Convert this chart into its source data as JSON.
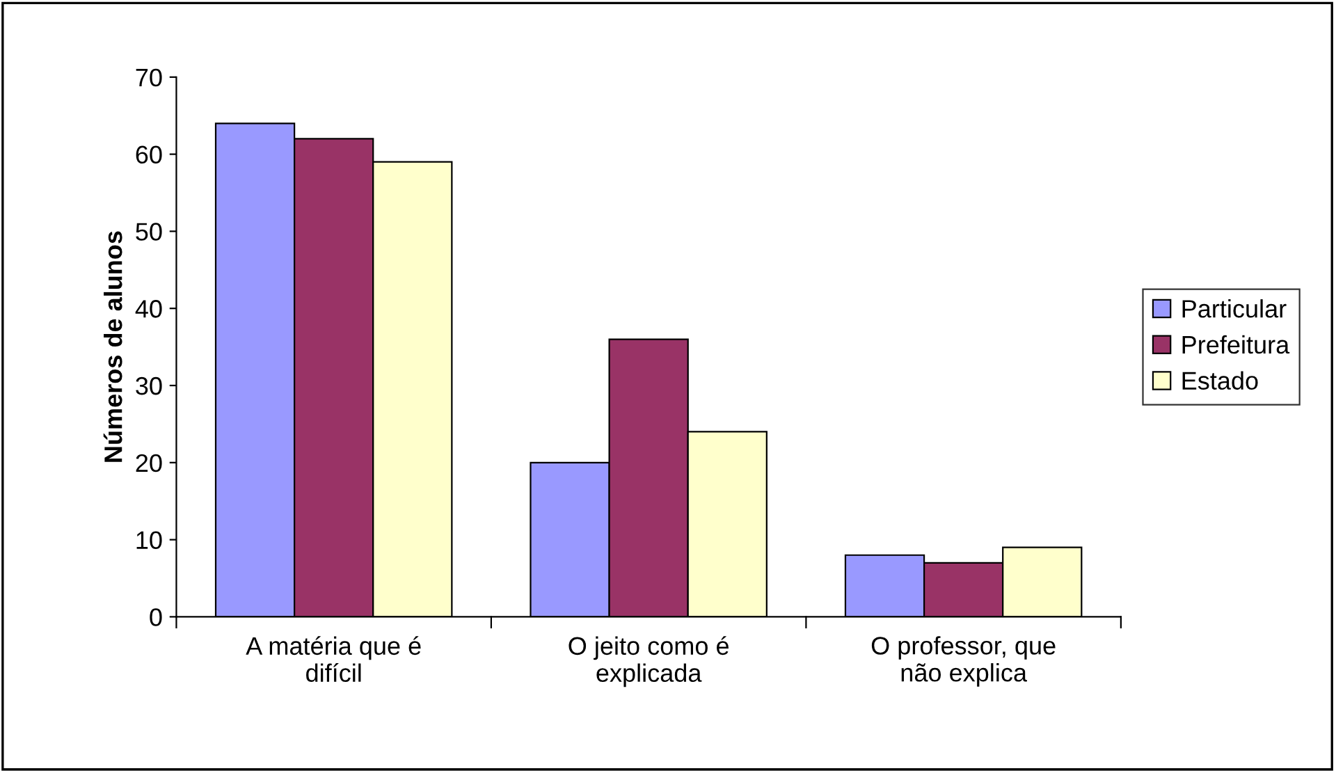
{
  "chart_data": {
    "type": "bar",
    "ylabel": "Números de alunos",
    "categories": [
      "A matéria que é\ndifícil",
      "O jeito como é\nexplicada",
      "O professor, que\nnão explica"
    ],
    "series": [
      {
        "name": "Particular",
        "color": "#9999ff",
        "values": [
          64,
          20,
          8
        ]
      },
      {
        "name": "Prefeitura",
        "color": "#993366",
        "values": [
          62,
          36,
          7
        ]
      },
      {
        "name": "Estado",
        "color": "#ffffcc",
        "values": [
          59,
          24,
          9
        ]
      }
    ],
    "ylim": [
      0,
      70
    ],
    "yticks": [
      0,
      10,
      20,
      30,
      40,
      50,
      60,
      70
    ],
    "grid": false,
    "legend": "right"
  }
}
